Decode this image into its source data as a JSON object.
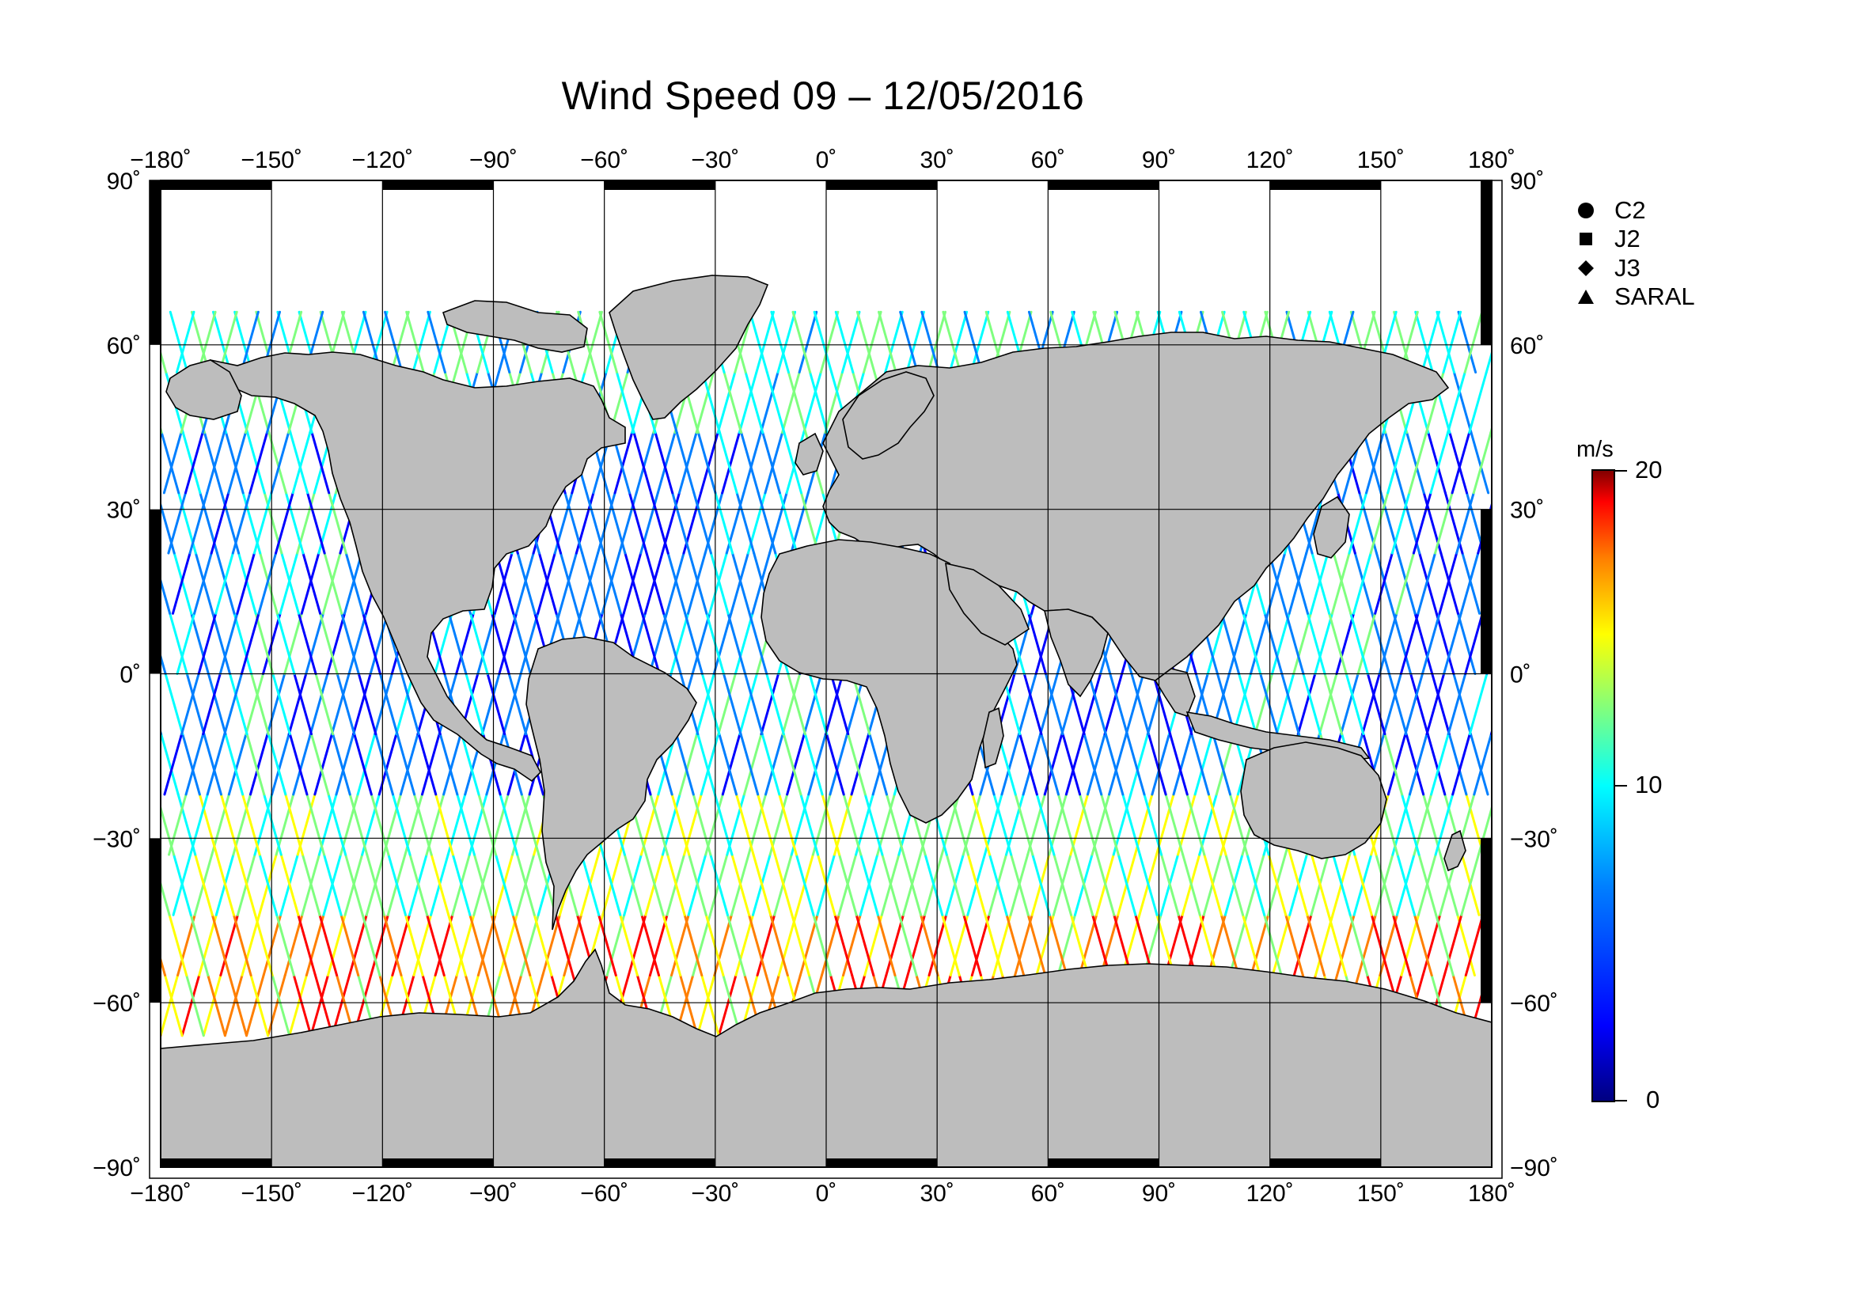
{
  "title": "Wind Speed 09 – 12/05/2016",
  "top_lon_labels": [
    "−180˚",
    "−150˚",
    "−120˚",
    "−90˚",
    "−60˚",
    "−30˚",
    "0˚",
    "30˚",
    "60˚",
    "90˚",
    "120˚",
    "150˚",
    "180˚"
  ],
  "bottom_lon_labels": [
    "−180˚",
    "−150˚",
    "−120˚",
    "−90˚",
    "−60˚",
    "−30˚",
    "0˚",
    "30˚",
    "60˚",
    "90˚",
    "120˚",
    "150˚",
    "180˚"
  ],
  "left_lat_labels": [
    "90˚",
    "60˚",
    "30˚",
    "0˚",
    "−30˚",
    "−60˚",
    "−90˚"
  ],
  "right_lat_labels": [
    "90˚",
    "60˚",
    "30˚",
    "0˚",
    "−30˚",
    "−60˚",
    "−90˚"
  ],
  "legend": [
    {
      "symbol": "circle-icon",
      "label": "C2"
    },
    {
      "symbol": "square-icon",
      "label": "J2"
    },
    {
      "symbol": "diamond-icon",
      "label": "J3"
    },
    {
      "symbol": "triangle-icon",
      "label": "SARAL"
    }
  ],
  "colorbar": {
    "unit": "m/s",
    "ticks": [
      "20",
      "10",
      "0"
    ],
    "range": [
      0,
      20
    ],
    "colormap": [
      "#00007f",
      "#0000ff",
      "#007fff",
      "#00ffff",
      "#7fff7f",
      "#ffff00",
      "#ff7f00",
      "#ff0000",
      "#7f0000"
    ]
  },
  "colors": {
    "land": "#bdbdbd",
    "ocean": "#ffffff",
    "grid": "#000000"
  },
  "map": {
    "projection": "equirectangular",
    "lon_range": [
      -180,
      180
    ],
    "lat_range": [
      -90,
      90
    ],
    "graticule_step_deg": 30
  }
}
